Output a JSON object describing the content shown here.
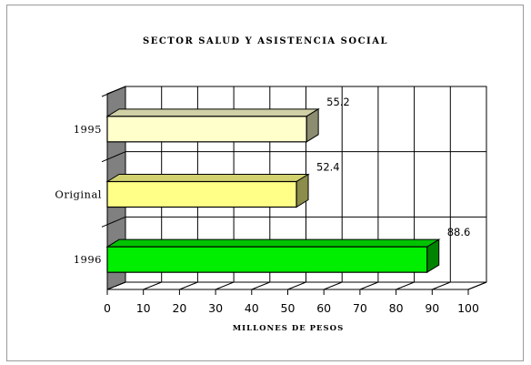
{
  "chart_data": {
    "type": "bar",
    "orientation": "horizontal",
    "title": "SECTOR SALUD Y ASISTENCIA SOCIAL",
    "xlabel": "MILLONES DE PESOS",
    "ylabel": "",
    "categories": [
      "1995",
      "Original",
      "1996"
    ],
    "values": [
      55.2,
      52.4,
      88.6
    ],
    "value_labels": [
      "55.2",
      "52.4",
      "88.6"
    ],
    "xlim": [
      0,
      100
    ],
    "xticks": [
      "0",
      "10",
      "20",
      "30",
      "40",
      "50",
      "60",
      "70",
      "80",
      "90",
      "100"
    ],
    "grid": true,
    "legend": "none",
    "colors": {
      "bar_1995": "#ffffcc",
      "bar_original": "#ffff88",
      "bar_1996": "#00ee00",
      "wall": "#808080"
    }
  }
}
